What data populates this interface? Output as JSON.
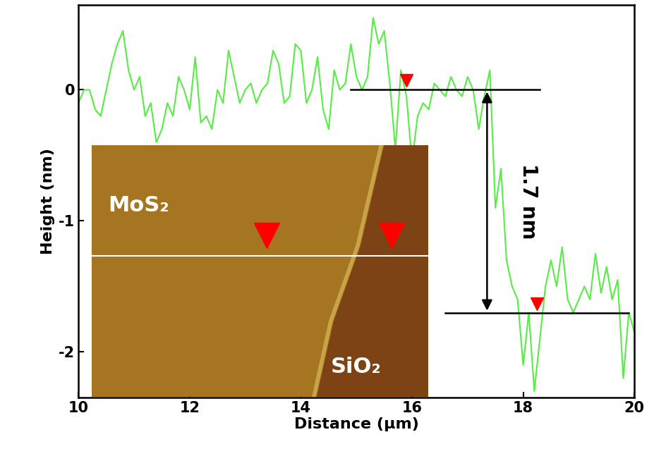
{
  "chart_data": {
    "type": "line",
    "x_label": "Distance (μm)",
    "y_label": "Height (nm)",
    "xlim": [
      10,
      20
    ],
    "xticks": [
      10,
      12,
      14,
      16,
      18,
      20
    ],
    "ylim": [
      -2.35,
      0.65
    ],
    "yticks": [
      -2,
      -1,
      0
    ],
    "color": "#55ee44",
    "x": [
      10.0,
      10.1,
      10.2,
      10.3,
      10.4,
      10.5,
      10.6,
      10.7,
      10.8,
      10.9,
      11.0,
      11.1,
      11.2,
      11.3,
      11.4,
      11.5,
      11.6,
      11.7,
      11.8,
      11.9,
      12.0,
      12.1,
      12.2,
      12.3,
      12.4,
      12.5,
      12.6,
      12.7,
      12.8,
      12.9,
      13.0,
      13.1,
      13.2,
      13.3,
      13.4,
      13.5,
      13.6,
      13.7,
      13.8,
      13.9,
      14.0,
      14.1,
      14.2,
      14.3,
      14.4,
      14.5,
      14.6,
      14.7,
      14.8,
      14.9,
      15.0,
      15.1,
      15.2,
      15.3,
      15.4,
      15.5,
      15.6,
      15.7,
      15.8,
      15.9,
      16.0,
      16.1,
      16.2,
      16.3,
      16.4,
      16.5,
      16.6,
      16.7,
      16.8,
      16.9,
      17.0,
      17.1,
      17.2,
      17.3,
      17.4,
      17.5,
      17.6,
      17.7,
      17.8,
      17.9,
      18.0,
      18.1,
      18.2,
      18.3,
      18.4,
      18.5,
      18.6,
      18.7,
      18.8,
      18.9,
      19.0,
      19.1,
      19.2,
      19.3,
      19.4,
      19.5,
      19.6,
      19.7,
      19.8,
      19.9,
      20.0
    ],
    "values": [
      -0.1,
      0.0,
      0.0,
      -0.15,
      -0.2,
      0.0,
      0.2,
      0.35,
      0.45,
      0.15,
      0.0,
      0.1,
      -0.2,
      -0.1,
      -0.4,
      -0.3,
      -0.1,
      -0.2,
      0.1,
      0.0,
      -0.15,
      0.25,
      -0.25,
      -0.2,
      -0.3,
      0.0,
      -0.1,
      0.3,
      0.1,
      -0.1,
      0.0,
      0.05,
      -0.1,
      0.0,
      0.05,
      0.3,
      0.2,
      -0.1,
      -0.05,
      0.35,
      0.3,
      -0.1,
      0.0,
      0.25,
      -0.15,
      -0.3,
      0.15,
      0.0,
      0.05,
      0.35,
      0.1,
      0.0,
      0.1,
      0.55,
      0.35,
      0.45,
      0.05,
      -0.45,
      0.15,
      -0.05,
      -0.55,
      -0.2,
      -0.1,
      -0.15,
      0.05,
      0.0,
      -0.05,
      0.1,
      0.0,
      -0.05,
      0.1,
      0.0,
      -0.3,
      -0.05,
      0.15,
      -0.9,
      -0.6,
      -1.3,
      -1.5,
      -1.6,
      -2.1,
      -1.7,
      -2.3,
      -1.9,
      -1.5,
      -1.3,
      -1.5,
      -1.2,
      -1.6,
      -1.7,
      -1.6,
      -1.5,
      -1.6,
      -1.25,
      -1.55,
      -1.35,
      -1.6,
      -1.45,
      -2.2,
      -1.7,
      -1.85
    ],
    "step": {
      "label": "1.7 nm",
      "upper": 0,
      "lower": -1.7,
      "upper_x": [
        14.9,
        18.3
      ],
      "lower_x": [
        16.6,
        19.9
      ],
      "arrow_x": 17.35
    },
    "markers": [
      {
        "x": 15.9,
        "y": 0
      },
      {
        "x": 18.25,
        "y": -1.7
      }
    ],
    "inset_labels": [
      "MoS₂",
      "SiO₂"
    ]
  }
}
